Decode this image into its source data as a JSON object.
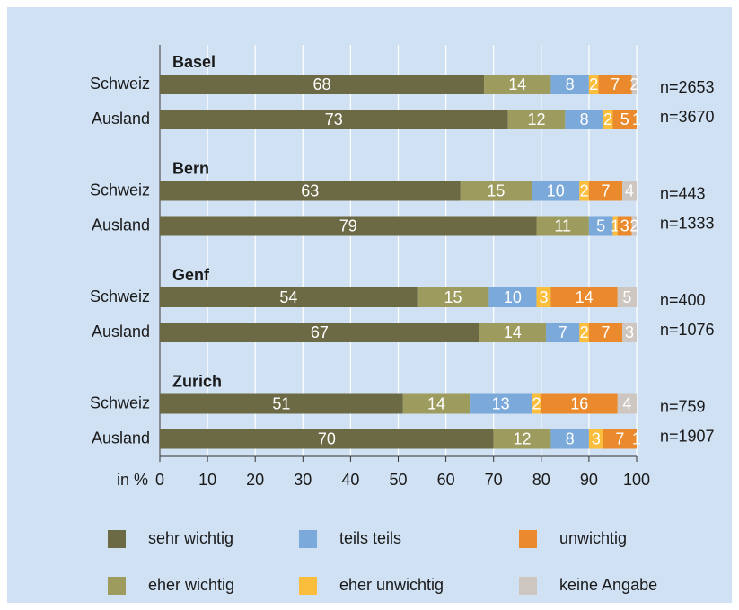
{
  "chart_data": {
    "type": "stacked-bar-horizontal",
    "groups": [
      "Basel",
      "Bern",
      "Genf",
      "Zurich"
    ],
    "categories": [
      "Schweiz",
      "Ausland",
      "Schweiz",
      "Ausland",
      "Schweiz",
      "Ausland",
      "Schweiz",
      "Ausland"
    ],
    "n_labels": [
      "n=2653",
      "n=3670",
      "n=443",
      "n=1333",
      "n=400",
      "n=1076",
      "n=759",
      "n=1907"
    ],
    "x_label": "in %",
    "xlim": [
      0,
      100
    ],
    "xticks": [
      0,
      10,
      20,
      30,
      40,
      50,
      60,
      70,
      80,
      90,
      100
    ],
    "grid": true,
    "series": [
      {
        "name": "sehr wichtig",
        "color": "#6b6a44",
        "values": [
          68,
          73,
          63,
          79,
          54,
          67,
          51,
          70
        ]
      },
      {
        "name": "eher wichtig",
        "color": "#9d9c5e",
        "values": [
          14,
          12,
          15,
          11,
          15,
          14,
          14,
          12
        ]
      },
      {
        "name": "teils teils",
        "color": "#7ba9da",
        "values": [
          8,
          8,
          10,
          5,
          10,
          7,
          13,
          8
        ]
      },
      {
        "name": "eher unwichtig",
        "color": "#fbbd3c",
        "values": [
          2,
          2,
          2,
          1,
          3,
          2,
          2,
          3
        ]
      },
      {
        "name": "unwichtig",
        "color": "#eb8a2d",
        "values": [
          7,
          5,
          7,
          3,
          14,
          7,
          16,
          7
        ]
      },
      {
        "name": "keine Angabe",
        "color": "#cdc6c1",
        "values": [
          2,
          1,
          4,
          2,
          5,
          3,
          4,
          1
        ]
      }
    ]
  }
}
